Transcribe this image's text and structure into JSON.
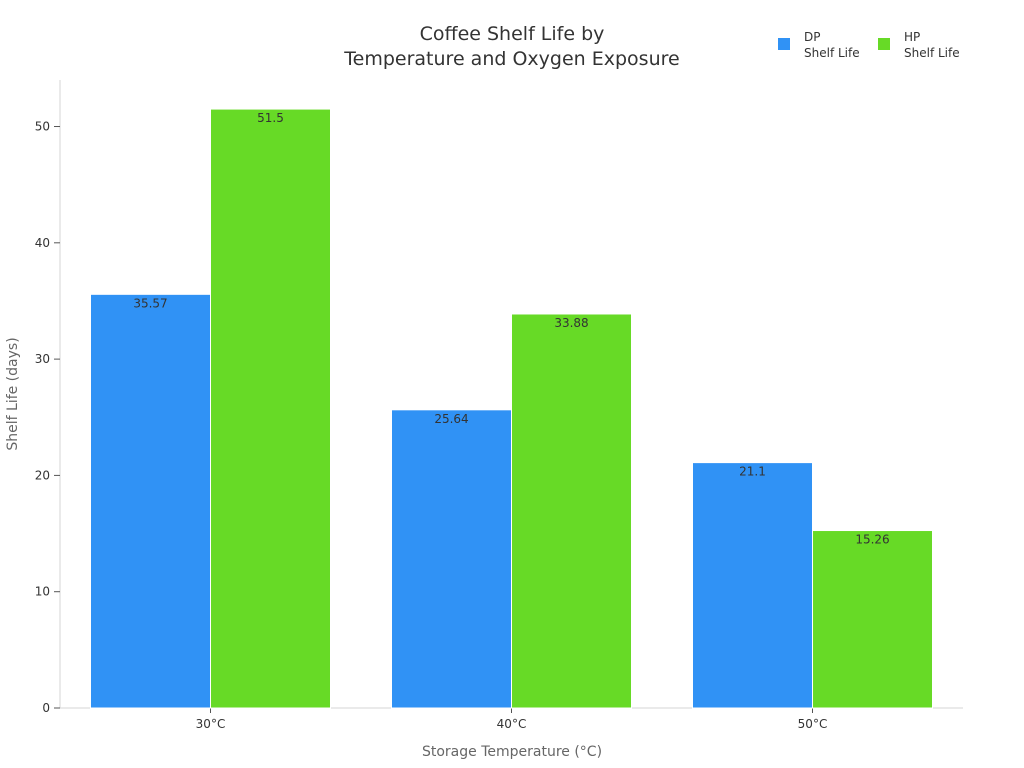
{
  "chart_data": {
    "type": "bar",
    "title_lines": [
      "Coffee Shelf Life by",
      "Temperature and Oxygen Exposure"
    ],
    "xlabel": "Storage Temperature (°C)",
    "ylabel": "Shelf Life (days)",
    "categories": [
      "30°C",
      "40°C",
      "50°C"
    ],
    "series": [
      {
        "legend_lines": [
          "DP",
          "Shelf Life"
        ],
        "color": "#3092f5",
        "values": [
          35.57,
          25.64,
          21.1
        ]
      },
      {
        "legend_lines": [
          "HP",
          "Shelf Life"
        ],
        "color": "#67da26",
        "values": [
          51.5,
          33.88,
          15.26
        ]
      }
    ],
    "ylim": [
      0,
      54
    ],
    "yticks": [
      0,
      10,
      20,
      30,
      40,
      50
    ],
    "grid": false,
    "legend_position": "top-right",
    "data_labels": true
  }
}
